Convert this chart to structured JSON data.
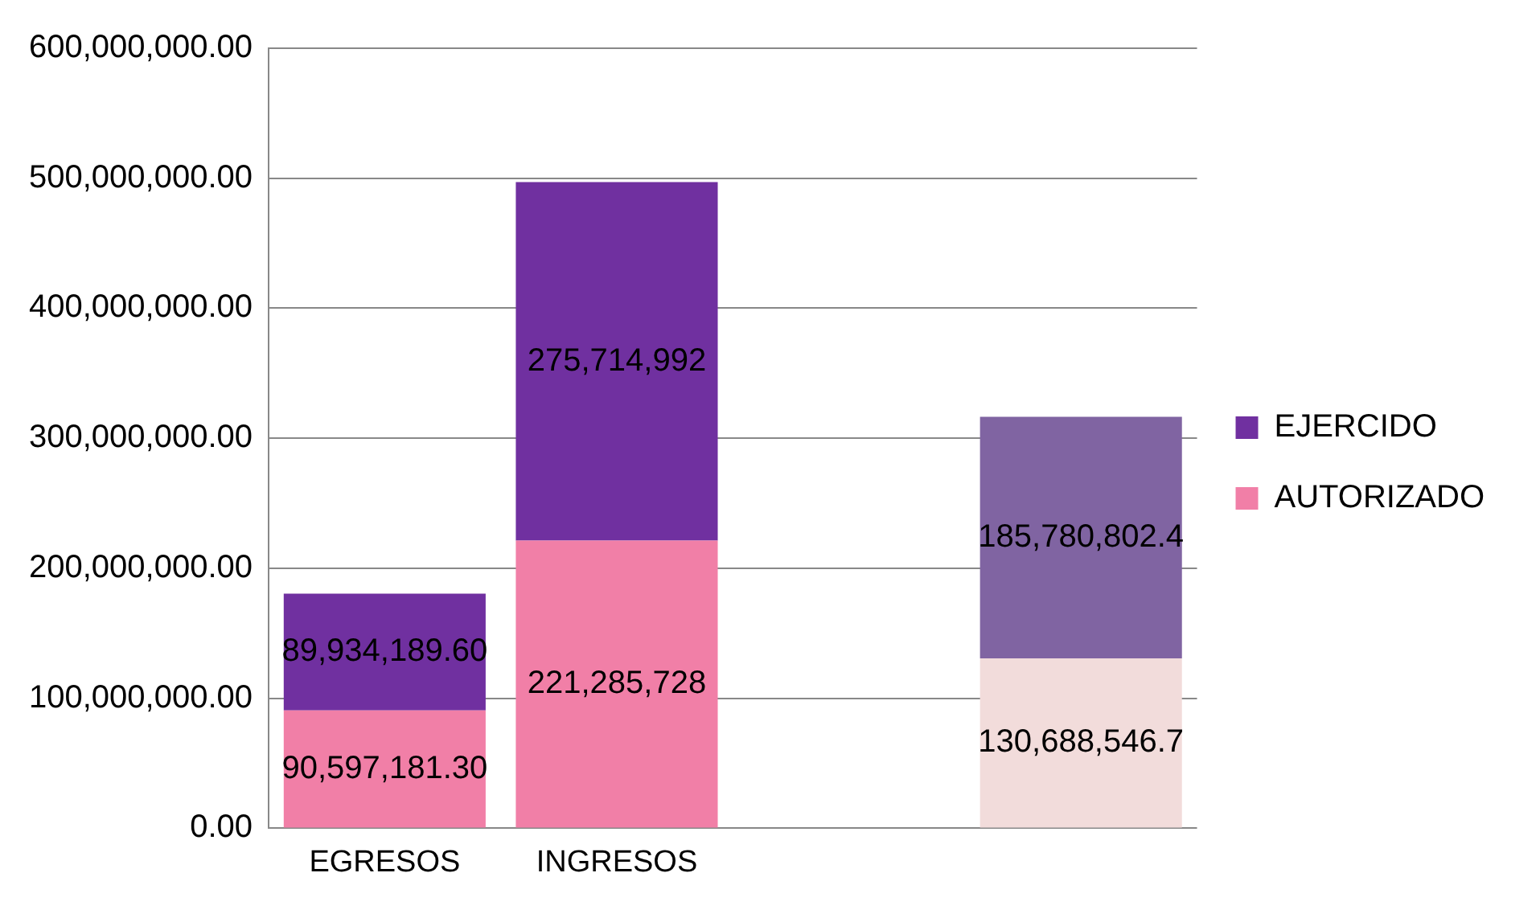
{
  "chart_data": {
    "type": "bar",
    "stacked": true,
    "categories": [
      "EGRESOS",
      "INGRESOS",
      null,
      null
    ],
    "series": [
      {
        "name": "AUTORIZADO",
        "color": "#f17fa7",
        "colors": [
          "#f17fa7",
          "#f17fa7",
          null,
          "#f2dcdb"
        ],
        "values": [
          90597181.3,
          221285728,
          null,
          130688546.7
        ],
        "value_labels": [
          "90,597,181.30",
          "221,285,728",
          null,
          "130,688,546.7"
        ]
      },
      {
        "name": "EJERCIDO",
        "color": "#7030a0",
        "colors": [
          "#7030a0",
          "#7030a0",
          null,
          "#8064a2"
        ],
        "values": [
          89934189.6,
          275714992,
          null,
          185780802.4
        ],
        "value_labels": [
          "89,934,189.60",
          "275,714,992",
          null,
          "185,780,802.4"
        ]
      }
    ],
    "ylim": [
      0,
      600000000
    ],
    "yticks": [
      {
        "value": 0,
        "label": "0.00"
      },
      {
        "value": 100000000,
        "label": "100,000,000.00"
      },
      {
        "value": 200000000,
        "label": "200,000,000.00"
      },
      {
        "value": 300000000,
        "label": "300,000,000.00"
      },
      {
        "value": 400000000,
        "label": "400,000,000.00"
      },
      {
        "value": 500000000,
        "label": "500,000,000.00"
      },
      {
        "value": 600000000,
        "label": "600,000,000.00"
      }
    ],
    "grid": "y",
    "legend": "right"
  }
}
